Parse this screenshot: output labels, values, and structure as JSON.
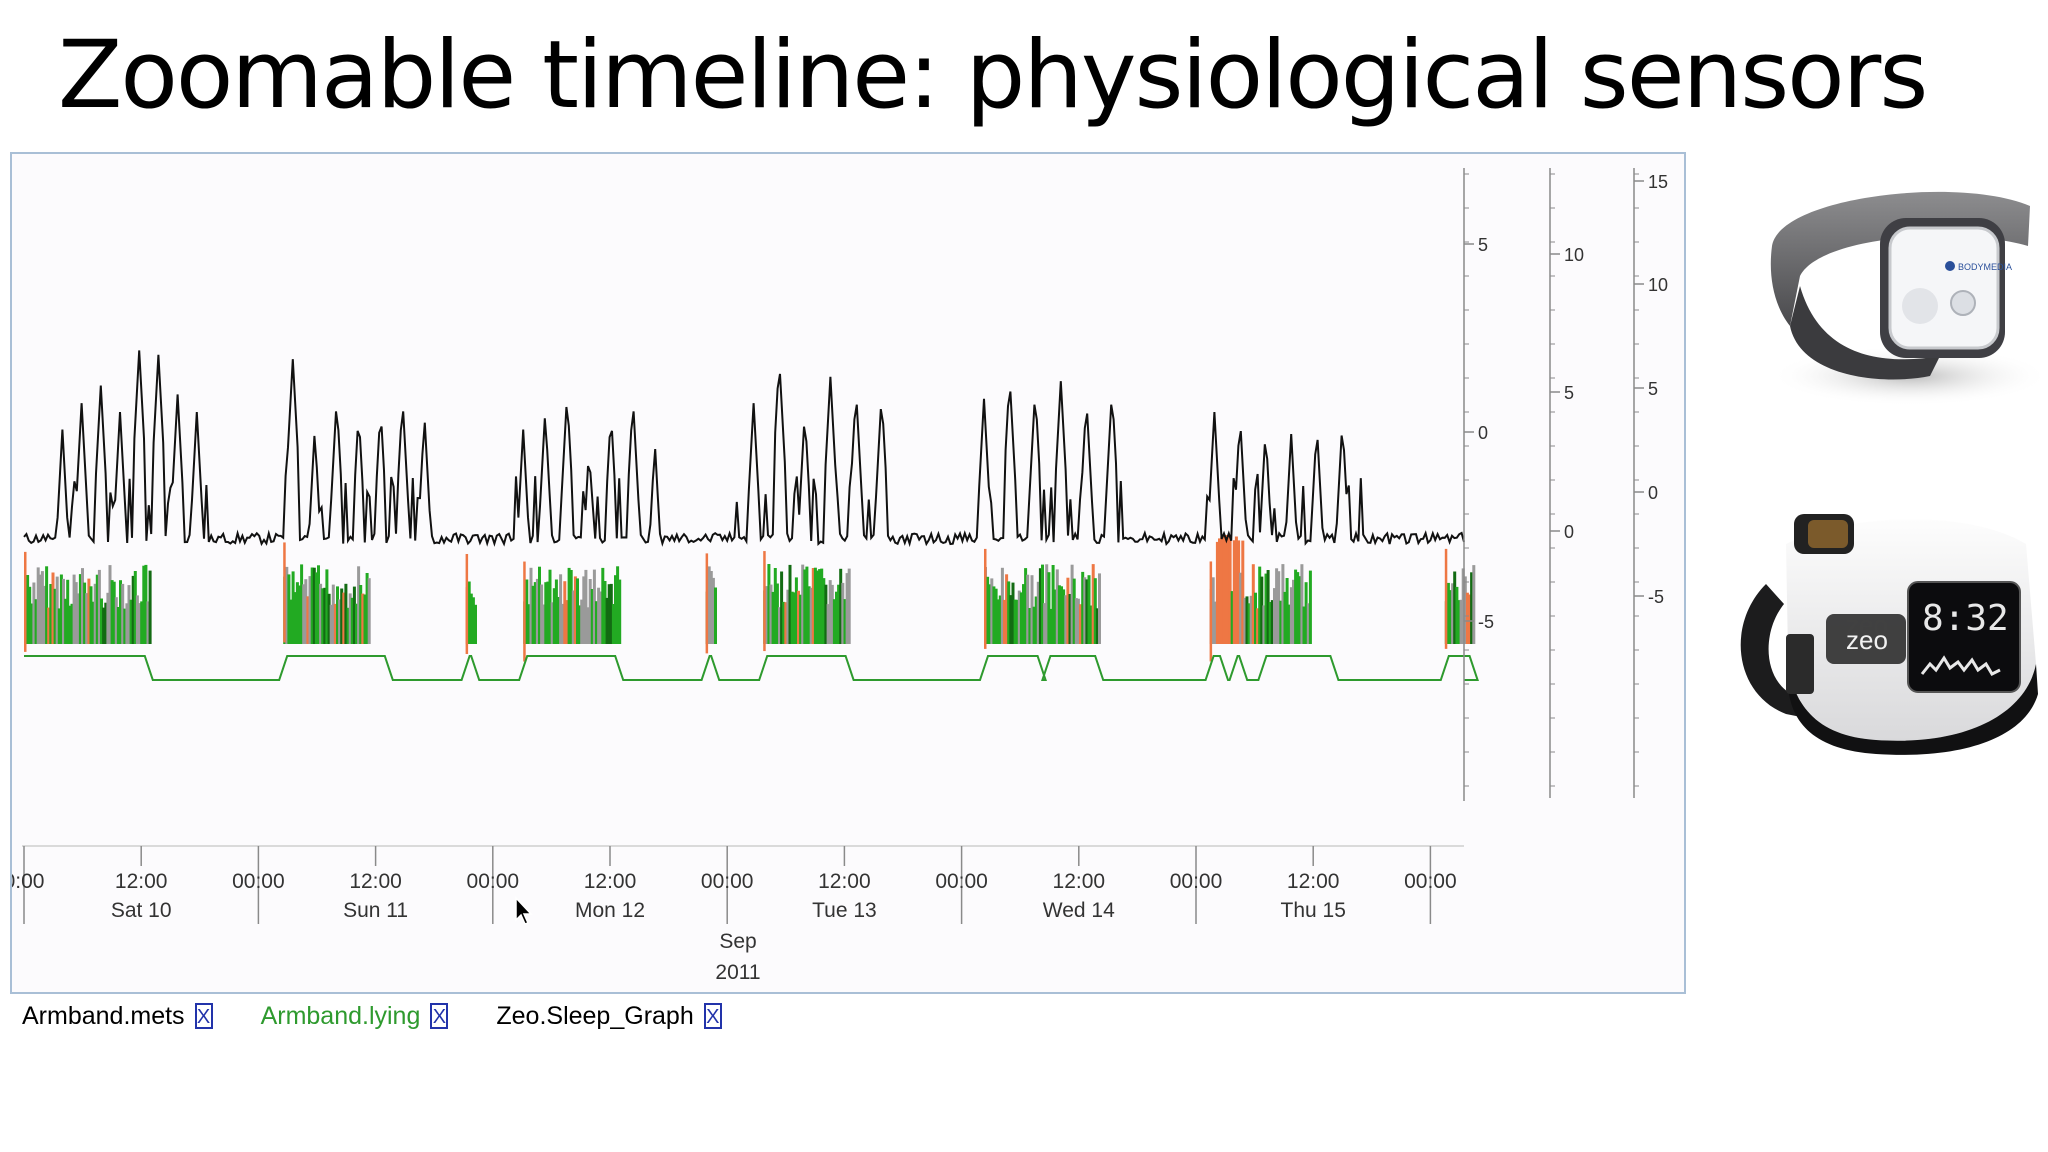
{
  "slide": {
    "title": "Zoomable timeline: physiological sensors"
  },
  "timeline": {
    "x_ticks": [
      {
        "time": "0:00",
        "day": ""
      },
      {
        "time": "12:00",
        "day": "Sat 10"
      },
      {
        "time": "00:00",
        "day": ""
      },
      {
        "time": "12:00",
        "day": "Sun 11"
      },
      {
        "time": "00:00",
        "day": ""
      },
      {
        "time": "12:00",
        "day": "Mon 12"
      },
      {
        "time": "00:00",
        "day": ""
      },
      {
        "time": "12:00",
        "day": "Tue 13"
      },
      {
        "time": "00:00",
        "day": ""
      },
      {
        "time": "12:00",
        "day": "Wed 14"
      },
      {
        "time": "00:00",
        "day": ""
      },
      {
        "time": "12:00",
        "day": "Thu 15"
      },
      {
        "time": "00:00",
        "day": ""
      }
    ],
    "month_label": "Sep",
    "year_label": "2011",
    "y_axes": [
      {
        "ticks": [
          "5",
          "0",
          "-5"
        ]
      },
      {
        "ticks": [
          "10",
          "5",
          "0"
        ]
      },
      {
        "ticks": [
          "15",
          "10",
          "5",
          "0",
          "-5"
        ]
      }
    ]
  },
  "legend": {
    "items": [
      {
        "label": "Armband.mets",
        "color": "#000000",
        "close": "X"
      },
      {
        "label": "Armband.lying",
        "color": "#2e9a2e",
        "close": "X"
      },
      {
        "label": "Zeo.Sleep_Graph",
        "color": "#000000",
        "close": "X"
      }
    ]
  },
  "devices": [
    {
      "name": "armband-sensor",
      "brand": "BODYMEDIA"
    },
    {
      "name": "zeo-sleep-manager",
      "brand": "zeo",
      "clock": "8:32"
    }
  ],
  "colors": {
    "mets_line": "#111111",
    "lying_line": "#2e9a2e",
    "sleep_green": "#22aa22",
    "sleep_dark_green": "#136b13",
    "sleep_gray": "#9a9a9a",
    "sleep_orange": "#ee7744",
    "axis": "#8a8a8a"
  },
  "chart_data": {
    "type": "line",
    "series": [
      {
        "name": "Armband.mets",
        "peaks_by_day": [
          {
            "day": "Sat 10",
            "values": [
              4.6,
              5.2,
              5.6,
              5.0,
              6.4,
              6.3,
              5.4,
              5.0
            ]
          },
          {
            "day": "Sun 11",
            "values": [
              6.2,
              4.6,
              5.3,
              5.0,
              5.1,
              5.3,
              4.9
            ]
          },
          {
            "day": "Mon 12",
            "values": [
              4.6,
              5.0,
              5.4,
              4.2,
              5.0,
              5.3,
              4.3
            ]
          },
          {
            "day": "Tue 13",
            "values": [
              5.2,
              6.2,
              5.0,
              5.8,
              5.5,
              5.4
            ]
          },
          {
            "day": "Wed 14",
            "values": [
              5.3,
              5.8,
              5.5,
              5.7,
              5.3,
              5.5
            ]
          },
          {
            "day": "Thu 15",
            "values": [
              5.0,
              4.9,
              4.6,
              4.5,
              4.7,
              4.8
            ]
          }
        ]
      },
      {
        "name": "Armband.lying",
        "segments": [
          {
            "start": "Fri 9 18:00",
            "end": "Sat 10 07:00"
          },
          {
            "start": "Sat 10 21:00",
            "end": "Sun 11 08:00"
          },
          {
            "start": "Sun 11 16:00",
            "end": "Sun 11 17:00"
          },
          {
            "start": "Sun 11 22:00",
            "end": "Mon 12 08:00"
          },
          {
            "start": "Mon 12 17:00",
            "end": "Mon 12 18:00"
          },
          {
            "start": "Mon 12 23:00",
            "end": "Tue 13 08:00"
          },
          {
            "start": "Tue 13 22:00",
            "end": "Wed 14 04:00"
          },
          {
            "start": "Wed 14 04:30",
            "end": "Wed 14 10:00"
          },
          {
            "start": "Wed 14 21:30",
            "end": "Wed 14 23:00"
          },
          {
            "start": "Thu 15 00:00",
            "end": "Thu 15 01:00"
          },
          {
            "start": "Thu 15 03:00",
            "end": "Thu 15 10:30"
          },
          {
            "start": "Thu 15 22:00",
            "end": "Fri 16 01:00"
          }
        ]
      },
      {
        "name": "Zeo.Sleep_Graph",
        "sessions": [
          {
            "start": "Fri 9 18:00",
            "end": "Sat 10 07:00"
          },
          {
            "start": "Sat 10 21:00",
            "end": "Sun 11 06:00"
          },
          {
            "start": "Sun 11 16:00",
            "end": "Sun 11 17:00"
          },
          {
            "start": "Sun 11 22:00",
            "end": "Mon 12 08:00"
          },
          {
            "start": "Mon 12 17:00",
            "end": "Mon 12 18:00"
          },
          {
            "start": "Mon 12 23:00",
            "end": "Tue 13 08:00"
          },
          {
            "start": "Tue 13 22:00",
            "end": "Wed 14 10:00"
          },
          {
            "start": "Wed 14 21:30",
            "end": "Thu 15 08:00"
          },
          {
            "start": "Thu 15 22:00",
            "end": "Fri 16 01:00"
          }
        ]
      }
    ]
  }
}
